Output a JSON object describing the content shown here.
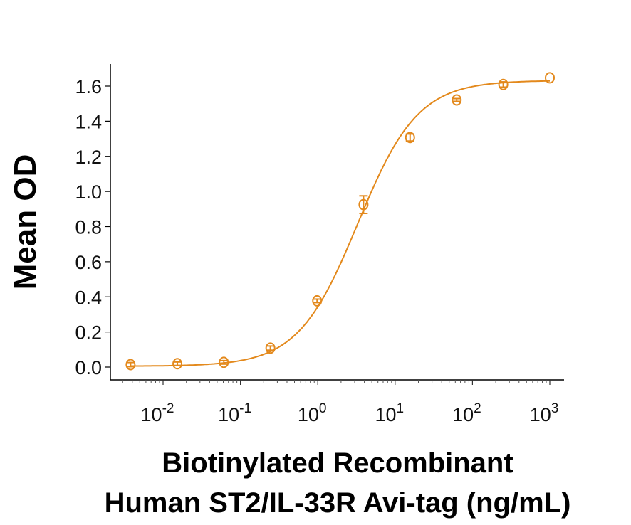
{
  "chart_data": {
    "type": "scatter",
    "title": "",
    "xlabel_lines": [
      "Biotinylated Recombinant",
      "Human ST2/IL-33R Avi-tag (ng/mL)"
    ],
    "ylabel": "Mean OD",
    "x_scale": "log",
    "xlim": [
      0.0021,
      2000
    ],
    "ylim": [
      -0.07,
      1.72
    ],
    "x_ticks": [
      {
        "value": 0.01,
        "base": "10",
        "exp": "-2"
      },
      {
        "value": 0.1,
        "base": "10",
        "exp": "-1"
      },
      {
        "value": 1,
        "base": "10",
        "exp": "0"
      },
      {
        "value": 10,
        "base": "10",
        "exp": "1"
      },
      {
        "value": 100,
        "base": "10",
        "exp": "2"
      },
      {
        "value": 1000,
        "base": "10",
        "exp": "3"
      }
    ],
    "y_ticks": [
      "0.0",
      "0.2",
      "0.4",
      "0.6",
      "0.8",
      "1.0",
      "1.2",
      "1.4",
      "1.6"
    ],
    "grid": false,
    "legend": "none",
    "color": "#E3891C",
    "series": [
      {
        "x": [
          0.0038,
          0.0153,
          0.061,
          0.244,
          0.98,
          3.9,
          15.6,
          62.5,
          250,
          1000
        ],
        "y": [
          0.014,
          0.019,
          0.027,
          0.108,
          0.377,
          0.925,
          1.307,
          1.521,
          1.609,
          1.647
        ],
        "error": [
          0.012,
          0.01,
          0.01,
          0.012,
          0.01,
          0.05,
          0.02,
          0.008,
          0.015,
          0.0
        ],
        "fit": "4PL curve"
      }
    ]
  }
}
